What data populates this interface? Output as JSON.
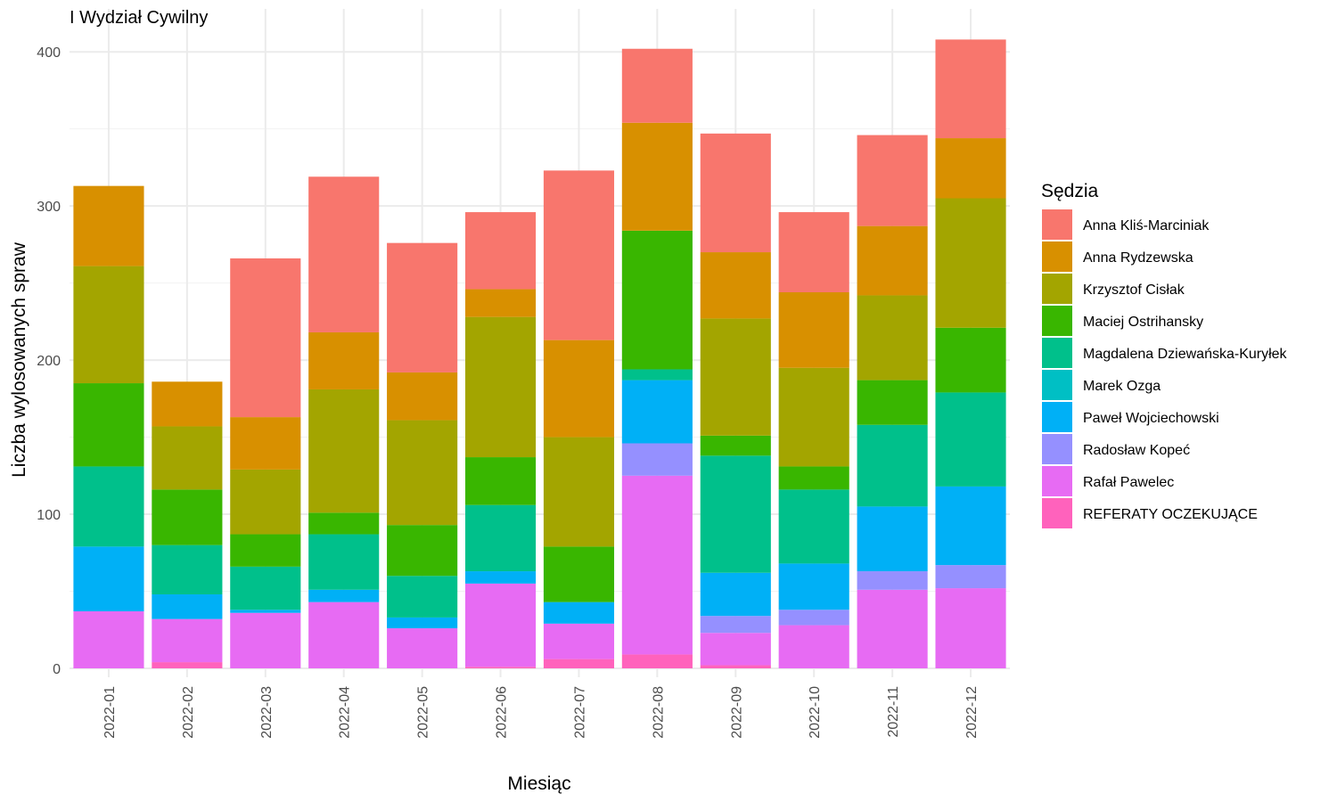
{
  "chart_data": {
    "type": "bar",
    "stacked": true,
    "title": "I Wydział Cywilny",
    "xlabel": "Miesiąc",
    "ylabel": "Liczba wylosowanych spraw",
    "ylim": [
      0,
      420
    ],
    "yticks": [
      0,
      100,
      200,
      300,
      400
    ],
    "grid": true,
    "legend_title": "Sędzia",
    "legend_position": "right",
    "categories": [
      "2022-01",
      "2022-02",
      "2022-03",
      "2022-04",
      "2022-05",
      "2022-06",
      "2022-07",
      "2022-08",
      "2022-09",
      "2022-10",
      "2022-11",
      "2022-12"
    ],
    "series": [
      {
        "name": "REFERATY OCZEKUJĄCE",
        "color": "#FF62BC",
        "values": [
          0,
          4,
          0,
          0,
          0,
          1,
          6,
          9,
          2,
          0,
          0,
          0
        ]
      },
      {
        "name": "Rafał Pawelec",
        "color": "#E76BF3",
        "values": [
          37,
          28,
          36,
          43,
          26,
          54,
          23,
          116,
          21,
          28,
          51,
          52
        ]
      },
      {
        "name": "Radosław Kopeć",
        "color": "#9590FF",
        "values": [
          0,
          0,
          0,
          0,
          0,
          0,
          0,
          21,
          11,
          10,
          12,
          15
        ]
      },
      {
        "name": "Paweł Wojciechowski",
        "color": "#00B0F6",
        "values": [
          42,
          16,
          2,
          8,
          7,
          8,
          14,
          41,
          28,
          30,
          42,
          51
        ]
      },
      {
        "name": "Marek Ozga",
        "color": "#00BFC4",
        "values": [
          0,
          0,
          0,
          0,
          0,
          0,
          0,
          0,
          0,
          0,
          0,
          0
        ]
      },
      {
        "name": "Magdalena Dziewańska-Kuryłek",
        "color": "#00C08B",
        "values": [
          52,
          32,
          28,
          36,
          27,
          43,
          0,
          7,
          76,
          48,
          53,
          61
        ]
      },
      {
        "name": "Maciej Ostrihansky",
        "color": "#39B600",
        "values": [
          54,
          36,
          21,
          14,
          33,
          31,
          36,
          90,
          13,
          15,
          29,
          42
        ]
      },
      {
        "name": "Krzysztof Cisłak",
        "color": "#A3A500",
        "values": [
          76,
          41,
          42,
          80,
          68,
          91,
          71,
          0,
          76,
          64,
          55,
          84
        ]
      },
      {
        "name": "Anna Rydzewska",
        "color": "#D89000",
        "values": [
          52,
          29,
          34,
          37,
          31,
          18,
          63,
          70,
          43,
          49,
          45,
          39
        ]
      },
      {
        "name": "Anna Kliś-Marciniak",
        "color": "#F8766D",
        "values": [
          0,
          0,
          103,
          101,
          84,
          50,
          110,
          48,
          77,
          52,
          59,
          64
        ]
      }
    ],
    "legend_order": [
      "Anna Kliś-Marciniak",
      "Anna Rydzewska",
      "Krzysztof Cisłak",
      "Maciej Ostrihansky",
      "Magdalena Dziewańska-Kuryłek",
      "Marek Ozga",
      "Paweł Wojciechowski",
      "Radosław Kopeć",
      "Rafał Pawelec",
      "REFERATY OCZEKUJĄCE"
    ]
  }
}
